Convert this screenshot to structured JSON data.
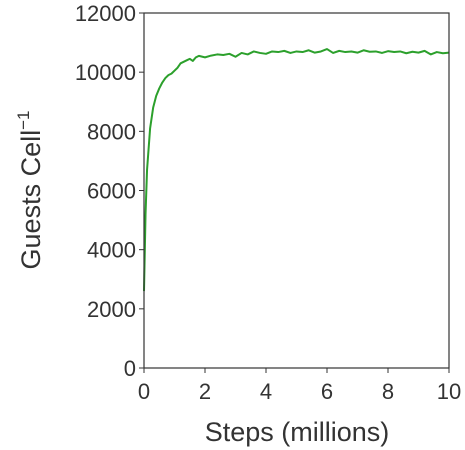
{
  "chart_data": {
    "type": "line",
    "xlabel": "Steps (millions)",
    "ylabel_main": "Guests Cell",
    "ylabel_sup": "−1",
    "xlim": [
      0,
      10
    ],
    "ylim": [
      0,
      12000
    ],
    "xticks": [
      0,
      2,
      4,
      6,
      8,
      10
    ],
    "yticks": [
      0,
      2000,
      4000,
      6000,
      8000,
      10000,
      12000
    ],
    "xtick_labels": [
      "0",
      "2",
      "4",
      "6",
      "8",
      "10"
    ],
    "ytick_labels": [
      "0",
      "2000",
      "4000",
      "6000",
      "8000",
      "10000",
      "12000"
    ],
    "grid": false,
    "series": [
      {
        "color": "#2ca02c",
        "x": [
          0,
          0.05,
          0.1,
          0.2,
          0.3,
          0.4,
          0.5,
          0.6,
          0.7,
          0.8,
          0.9,
          1.0,
          1.1,
          1.2,
          1.3,
          1.4,
          1.5,
          1.6,
          1.7,
          1.8,
          2.0,
          2.2,
          2.4,
          2.6,
          2.8,
          3.0,
          3.2,
          3.4,
          3.6,
          3.8,
          4.0,
          4.2,
          4.4,
          4.6,
          4.8,
          5.0,
          5.2,
          5.4,
          5.6,
          5.8,
          6.0,
          6.2,
          6.4,
          6.6,
          6.8,
          7.0,
          7.2,
          7.4,
          7.6,
          7.8,
          8.0,
          8.2,
          8.4,
          8.6,
          8.8,
          9.0,
          9.2,
          9.4,
          9.6,
          9.8,
          10.0
        ],
        "y": [
          2600,
          5200,
          6700,
          8100,
          8800,
          9200,
          9450,
          9650,
          9800,
          9900,
          9950,
          10050,
          10150,
          10300,
          10350,
          10400,
          10450,
          10380,
          10500,
          10550,
          10500,
          10560,
          10600,
          10580,
          10620,
          10520,
          10650,
          10600,
          10700,
          10650,
          10620,
          10700,
          10680,
          10720,
          10650,
          10700,
          10680,
          10740,
          10660,
          10700,
          10780,
          10650,
          10720,
          10680,
          10700,
          10660,
          10740,
          10690,
          10700,
          10650,
          10710,
          10680,
          10700,
          10640,
          10690,
          10660,
          10720,
          10600,
          10680,
          10640,
          10660
        ]
      }
    ]
  }
}
